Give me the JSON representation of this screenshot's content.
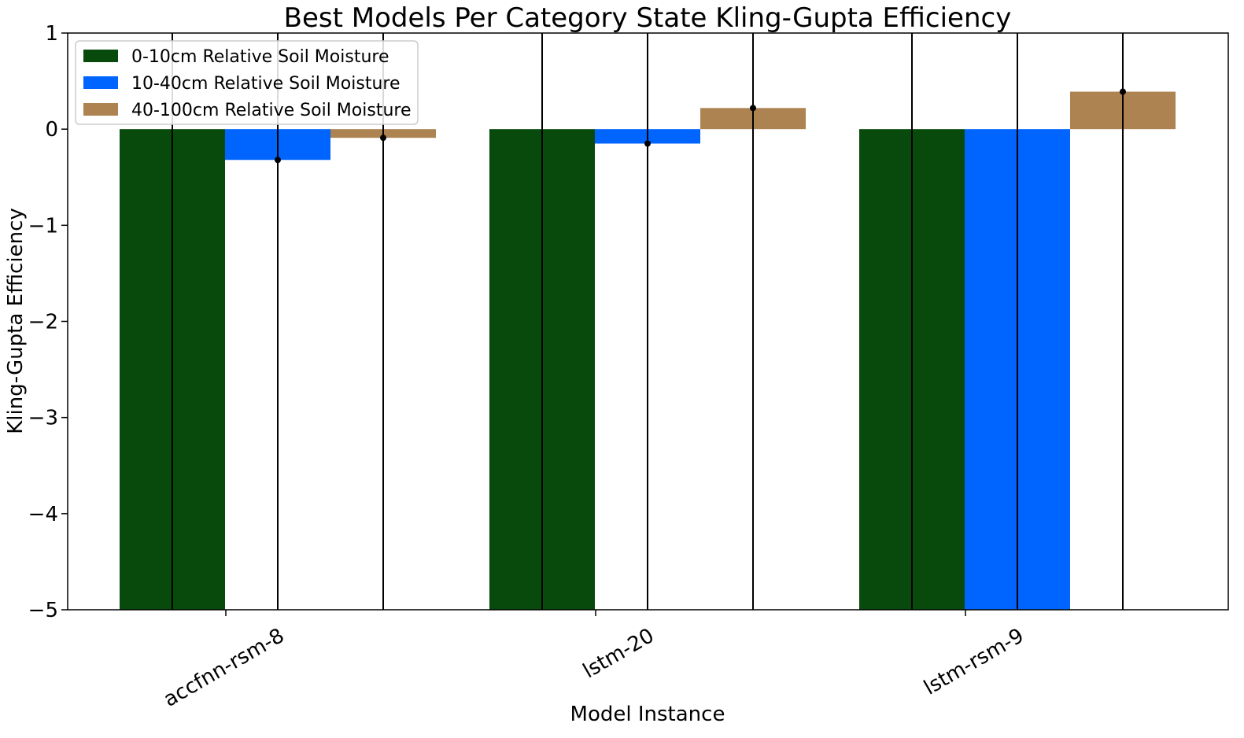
{
  "chart_data": {
    "type": "bar",
    "title": "Best Models Per Category State Kling-Gupta Efficiency",
    "xlabel": "Model Instance",
    "ylabel": "Kling-Gupta Efficiency",
    "ylim": [
      -5,
      1
    ],
    "yticks": [
      -5,
      -4,
      -3,
      -2,
      -1,
      0,
      1
    ],
    "ytick_labels": [
      "−5",
      "−4",
      "−3",
      "−2",
      "−1",
      "0",
      "1"
    ],
    "categories": [
      "accfnn-rsm-8",
      "lstm-20",
      "lstm-rsm-9"
    ],
    "grid": false,
    "legend_position": "top-left",
    "series": [
      {
        "name": "0-10cm Relative Soil Moisture",
        "color": "#08490c",
        "values": [
          -5.0,
          -5.0,
          -5.0
        ],
        "error_bars": true
      },
      {
        "name": "10-40cm Relative Soil Moisture",
        "color": "#0064ff",
        "values": [
          -0.32,
          -0.15,
          -5.0
        ],
        "error_bars": true
      },
      {
        "name": "40-100cm Relative Soil Moisture",
        "color": "#ad8352",
        "values": [
          -0.09,
          0.22,
          0.39
        ],
        "error_bars": true
      }
    ]
  }
}
